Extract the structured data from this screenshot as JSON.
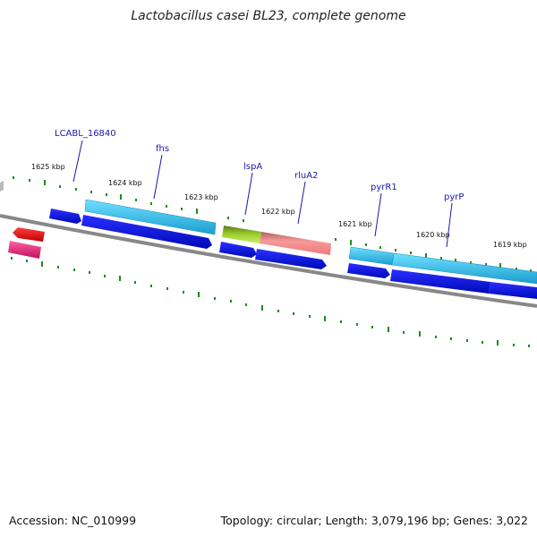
{
  "title": "Lactobacillus casei BL23, complete genome",
  "footer": {
    "accession": "Accession: NC_010999",
    "summary": "Topology: circular; Length: 3,079,196 bp; Genes: 3,022"
  },
  "kbp_labels": [
    "1625 kbp",
    "1624 kbp",
    "1623 kbp",
    "1622 kbp",
    "1621 kbp",
    "1620 kbp",
    "1619 kbp"
  ],
  "gene_labels": [
    "LCABL_16840",
    "fhs",
    "lspA",
    "rluA2",
    "pyrR1",
    "pyrP"
  ],
  "colors": {
    "cds": "#0a12e6",
    "gene_cyan": "#27b8e4",
    "olive": "#7a9d2a",
    "salmon": "#f08a8a",
    "red": "#ee1111",
    "pink": "#e0207a",
    "backbone": "#8a8a8a",
    "ticks": "#1e8a1e"
  }
}
